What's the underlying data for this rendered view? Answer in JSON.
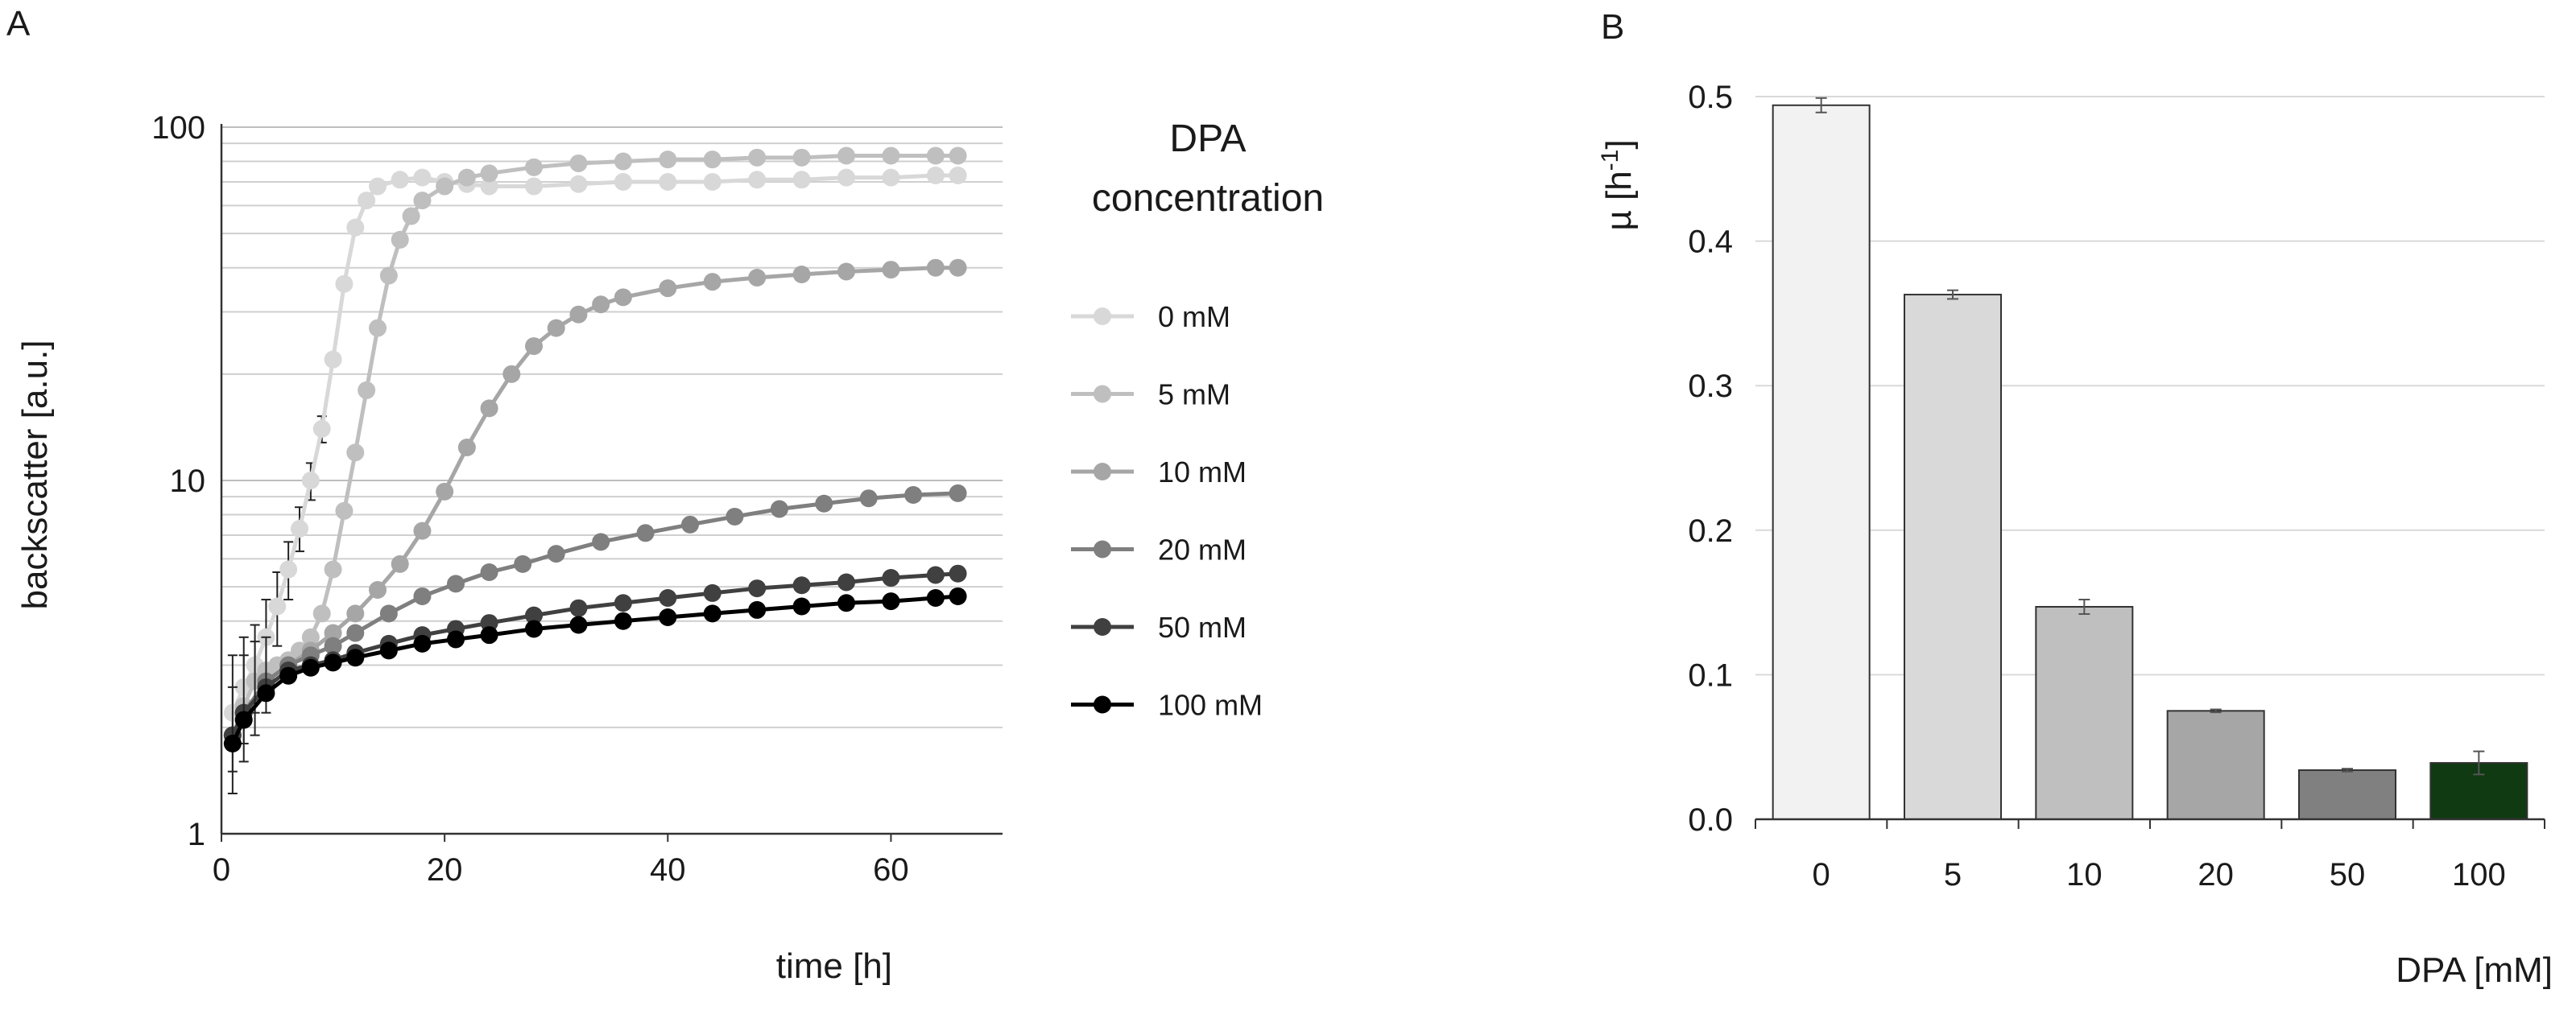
{
  "chart_data": [
    {
      "panel": "A",
      "type": "line",
      "xlabel": "time [h]",
      "ylabel": "backscatter [a.u.]",
      "yscale": "log",
      "ylim": [
        1,
        100
      ],
      "xlim": [
        0,
        70
      ],
      "xticks": [
        "0",
        "20",
        "40",
        "60"
      ],
      "yticks": [
        "1",
        "10",
        "100"
      ],
      "grid": "horizontal",
      "legend": {
        "title_line1": "DPA",
        "title_line2": "concentration",
        "placement": "right"
      },
      "series": [
        {
          "name": "0 mM",
          "color": "#d8d8d8",
          "x": [
            1,
            2,
            3,
            4,
            5,
            6,
            7,
            8,
            9,
            10,
            11,
            12,
            13,
            14,
            16,
            18,
            20,
            22,
            24,
            28,
            32,
            36,
            40,
            44,
            48,
            52,
            56,
            60,
            64,
            66
          ],
          "y": [
            2.2,
            2.6,
            3.0,
            3.6,
            4.4,
            5.6,
            7.3,
            10,
            14,
            22,
            36,
            52,
            62,
            68,
            71,
            72,
            70,
            69,
            68,
            68,
            69,
            70,
            70,
            70,
            71,
            71,
            72,
            72,
            73,
            73
          ],
          "err_x": [
            1,
            2,
            3,
            4,
            5,
            6,
            7,
            8,
            9
          ],
          "err_lo": [
            1.5,
            1.8,
            2.2,
            2.7,
            3.4,
            4.6,
            6.3,
            8.8,
            12.8
          ],
          "err_hi": [
            3.2,
            3.6,
            3.9,
            4.6,
            5.5,
            6.7,
            8.4,
            11.2,
            15.2
          ]
        },
        {
          "name": "5 mM",
          "color": "#bfbfbf",
          "x": [
            1,
            2,
            3,
            4,
            5,
            6,
            7,
            8,
            9,
            10,
            11,
            12,
            13,
            14,
            15,
            16,
            17,
            18,
            20,
            22,
            24,
            28,
            32,
            36,
            40,
            44,
            48,
            52,
            56,
            60,
            64,
            66
          ],
          "y": [
            1.9,
            2.3,
            2.7,
            2.9,
            3.0,
            3.1,
            3.3,
            3.6,
            4.2,
            5.6,
            8.2,
            12,
            18,
            27,
            38,
            48,
            56,
            62,
            68,
            72,
            74,
            77,
            79,
            80,
            81,
            81,
            82,
            82,
            83,
            83,
            83,
            83
          ]
        },
        {
          "name": "10 mM",
          "color": "#a6a6a6",
          "x": [
            1,
            2,
            4,
            6,
            8,
            10,
            12,
            14,
            16,
            18,
            20,
            22,
            24,
            26,
            28,
            30,
            32,
            34,
            36,
            40,
            44,
            48,
            52,
            56,
            60,
            64,
            66
          ],
          "y": [
            1.9,
            2.2,
            2.7,
            3.0,
            3.3,
            3.7,
            4.2,
            4.9,
            5.8,
            7.2,
            9.3,
            12.4,
            16,
            20,
            24,
            27,
            29.5,
            31.5,
            33,
            35,
            36.5,
            37.5,
            38.3,
            39,
            39.5,
            40,
            40
          ]
        },
        {
          "name": "20 mM",
          "color": "#7f7f7f",
          "x": [
            1,
            2,
            4,
            6,
            8,
            10,
            12,
            15,
            18,
            21,
            24,
            27,
            30,
            34,
            38,
            42,
            46,
            50,
            54,
            58,
            62,
            66
          ],
          "y": [
            1.9,
            2.2,
            2.7,
            3.0,
            3.2,
            3.4,
            3.7,
            4.2,
            4.7,
            5.1,
            5.5,
            5.8,
            6.2,
            6.7,
            7.1,
            7.5,
            7.9,
            8.3,
            8.6,
            8.9,
            9.1,
            9.2
          ]
        },
        {
          "name": "50 mM",
          "color": "#404040",
          "x": [
            1,
            2,
            4,
            6,
            8,
            10,
            12,
            15,
            18,
            21,
            24,
            28,
            32,
            36,
            40,
            44,
            48,
            52,
            56,
            60,
            64,
            66
          ],
          "y": [
            1.9,
            2.2,
            2.6,
            2.9,
            3.0,
            3.1,
            3.25,
            3.45,
            3.65,
            3.8,
            3.95,
            4.15,
            4.35,
            4.5,
            4.65,
            4.8,
            4.95,
            5.05,
            5.15,
            5.3,
            5.4,
            5.45
          ]
        },
        {
          "name": "100 mM",
          "color": "#000000",
          "x": [
            1,
            2,
            4,
            6,
            8,
            10,
            12,
            15,
            18,
            21,
            24,
            28,
            32,
            36,
            40,
            44,
            48,
            52,
            56,
            60,
            64,
            66
          ],
          "y": [
            1.8,
            2.1,
            2.5,
            2.8,
            2.95,
            3.05,
            3.15,
            3.3,
            3.45,
            3.55,
            3.65,
            3.8,
            3.9,
            4.0,
            4.1,
            4.2,
            4.3,
            4.4,
            4.5,
            4.55,
            4.65,
            4.7
          ],
          "err_x": [
            1,
            2,
            3,
            4
          ],
          "err_lo": [
            1.3,
            1.6,
            1.9,
            2.2
          ],
          "err_hi": [
            2.6,
            3.2,
            3.5,
            3.6
          ]
        }
      ]
    },
    {
      "panel": "B",
      "type": "bar",
      "xlabel": "DPA [mM]",
      "ylabel": "µ [h",
      "ylabel_sup": "-1",
      "ylabel_end": "]",
      "ylim": [
        0,
        0.5
      ],
      "yticks": [
        "0.0",
        "0.1",
        "0.2",
        "0.3",
        "0.4",
        "0.5"
      ],
      "grid": "horizontal",
      "categories": [
        "0",
        "5",
        "10",
        "20",
        "50",
        "100"
      ],
      "values": [
        0.494,
        0.363,
        0.147,
        0.075,
        0.034,
        0.039
      ],
      "errors": [
        0.005,
        0.003,
        0.005,
        0.001,
        0.001,
        0.008
      ],
      "colors": [
        "#f2f2f2",
        "#d9d9d9",
        "#bfbfbf",
        "#a6a6a6",
        "#808080",
        "#0f3a12"
      ]
    }
  ]
}
